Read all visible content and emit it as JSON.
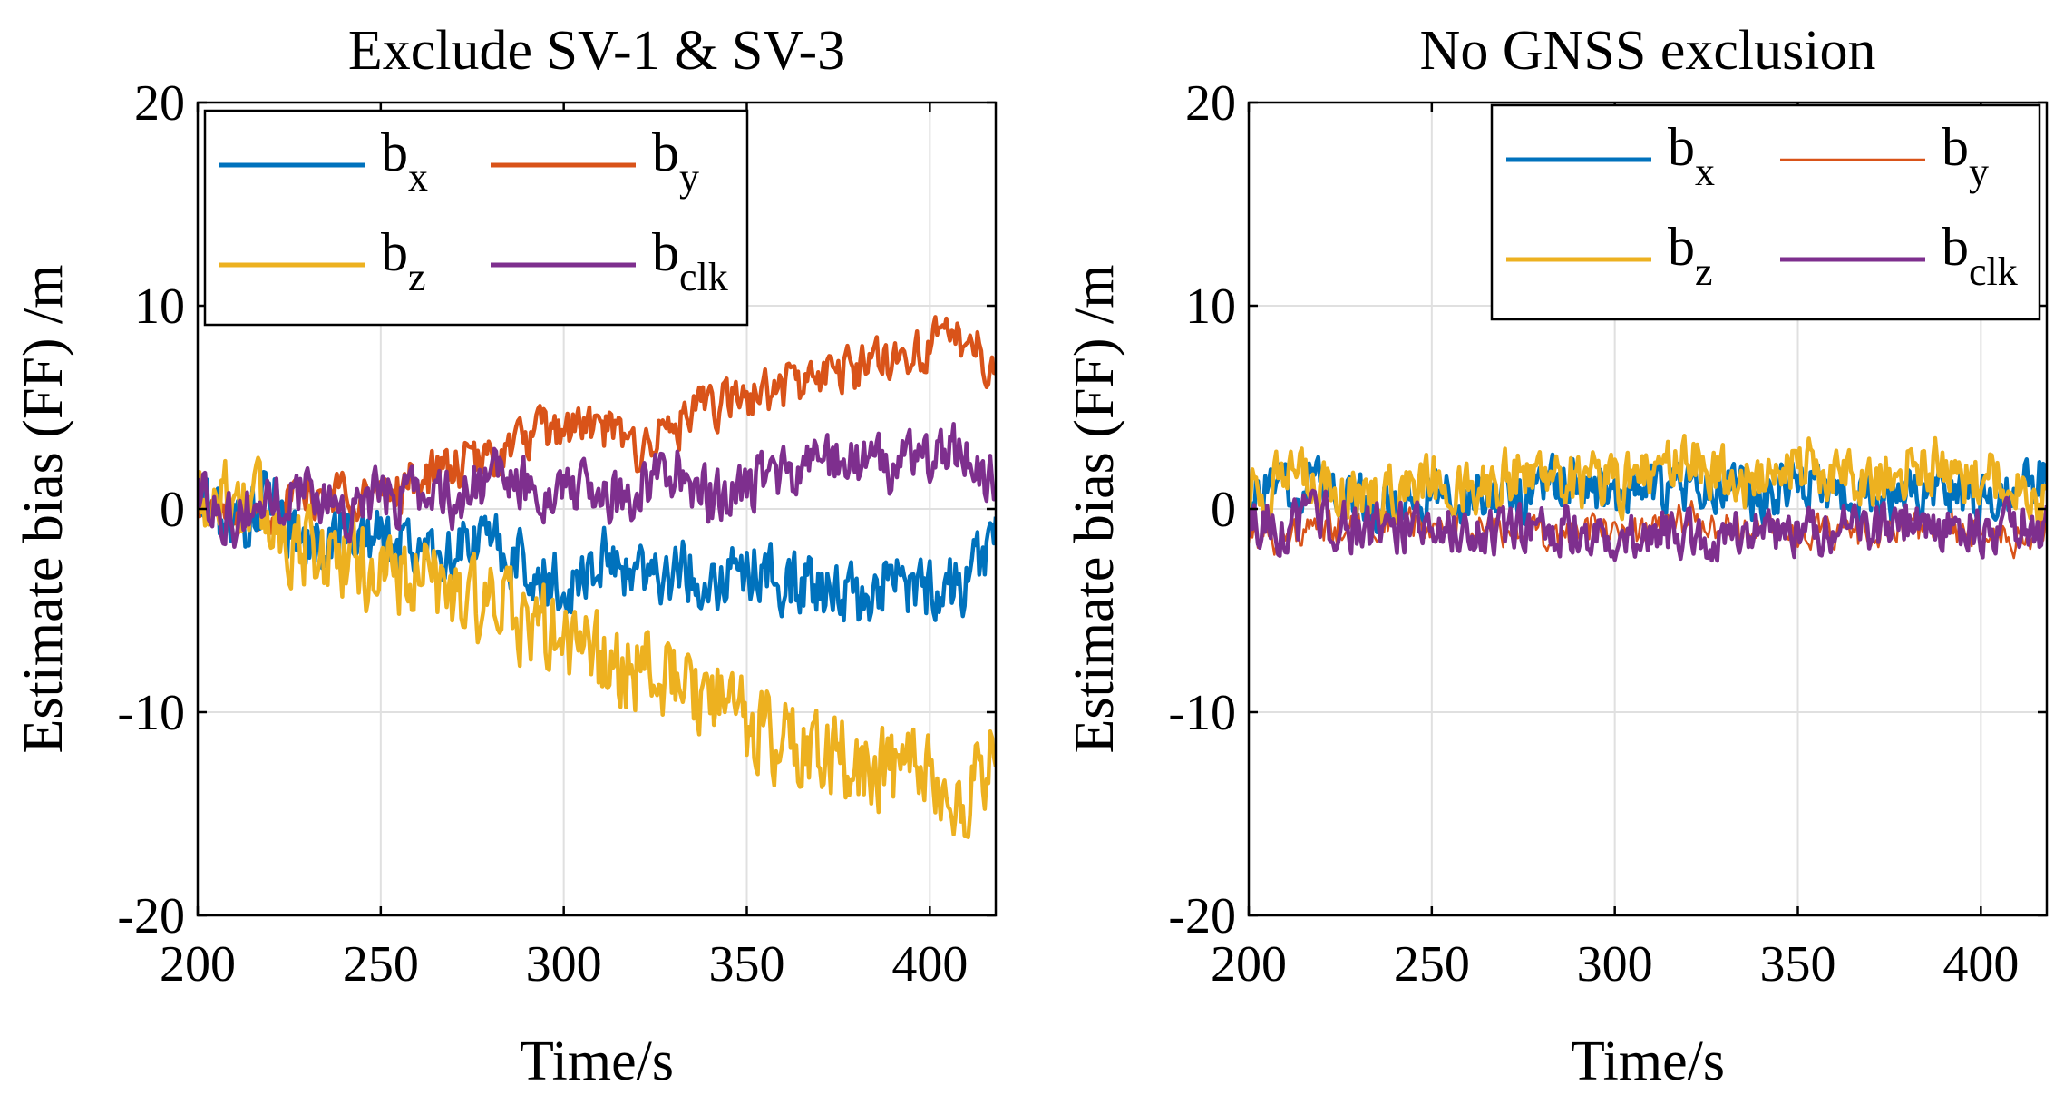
{
  "colors": {
    "bx": "#0072BD",
    "by": "#D95319",
    "bz": "#EDB120",
    "bclk": "#7E2F8E",
    "grid": "#e0e0e0",
    "axis": "#000000"
  },
  "chart_data": [
    {
      "type": "line",
      "title": "Exclude SV-1 & SV-3",
      "xlabel": "Time/s",
      "ylabel": "Estimate bias (FF) /m",
      "xlim": [
        200,
        418
      ],
      "ylim": [
        -20,
        20
      ],
      "xticks": [
        "200",
        "250",
        "300",
        "350",
        "400"
      ],
      "yticks": [
        "20",
        "10",
        "0",
        "-10",
        "-20"
      ],
      "grid": true,
      "legend_position": "top-left",
      "legend": [
        {
          "key": "bx",
          "base": "b",
          "sub": "x"
        },
        {
          "key": "by",
          "base": "b",
          "sub": "y"
        },
        {
          "key": "bz",
          "base": "b",
          "sub": "z"
        },
        {
          "key": "bclk",
          "base": "b",
          "sub": "clk"
        }
      ],
      "x": [
        200,
        210,
        220,
        230,
        240,
        250,
        260,
        270,
        280,
        290,
        300,
        310,
        320,
        330,
        340,
        350,
        360,
        370,
        380,
        390,
        400,
        410,
        418
      ],
      "series": [
        {
          "name": "bx",
          "values": [
            0.5,
            -1,
            0.5,
            -2,
            -1,
            -1.5,
            -2,
            -2,
            -1.5,
            -3,
            -4,
            -2.5,
            -3,
            -3,
            -3.5,
            -3,
            -3.5,
            -4,
            -4.5,
            -3.5,
            -4,
            -3.5,
            -1
          ]
        },
        {
          "name": "by",
          "values": [
            0.5,
            -0.5,
            0,
            0.5,
            1,
            0.5,
            1.5,
            2,
            2.5,
            3.5,
            4,
            4,
            3,
            4,
            5,
            5.5,
            6,
            6.5,
            7,
            7.5,
            8,
            8.5,
            7
          ]
        },
        {
          "name": "bz",
          "values": [
            0.5,
            1,
            -0.5,
            -2,
            -2.5,
            -3,
            -3.5,
            -4,
            -5,
            -5.5,
            -6.5,
            -7.5,
            -8,
            -8.5,
            -9.5,
            -10.5,
            -11.5,
            -12,
            -12.5,
            -13,
            -13.5,
            -15,
            -11
          ]
        },
        {
          "name": "bclk",
          "values": [
            1,
            -0.5,
            0.5,
            1,
            0,
            0.5,
            1,
            0.5,
            1.5,
            1,
            1,
            0.5,
            1,
            2,
            0.5,
            1,
            1.5,
            2.5,
            2.5,
            2,
            2.5,
            3,
            1
          ]
        }
      ]
    },
    {
      "type": "line",
      "title": "No GNSS exclusion",
      "xlabel": "Time/s",
      "ylabel": "Estimate bias (FF) /m",
      "xlim": [
        200,
        418
      ],
      "ylim": [
        -20,
        20
      ],
      "xticks": [
        "200",
        "250",
        "300",
        "350",
        "400"
      ],
      "yticks": [
        "20",
        "10",
        "0",
        "-10",
        "-20"
      ],
      "grid": true,
      "legend_position": "top-right",
      "legend": [
        {
          "key": "bx",
          "base": "b",
          "sub": "x"
        },
        {
          "key": "by",
          "base": "b",
          "sub": "y"
        },
        {
          "key": "bz",
          "base": "b",
          "sub": "z"
        },
        {
          "key": "bclk",
          "base": "b",
          "sub": "clk"
        }
      ],
      "x": [
        200,
        210,
        220,
        230,
        240,
        250,
        260,
        270,
        280,
        290,
        300,
        310,
        320,
        330,
        340,
        350,
        360,
        370,
        380,
        390,
        400,
        410,
        418
      ],
      "series": [
        {
          "name": "bx",
          "values": [
            0.5,
            1,
            1.5,
            0.5,
            0,
            1,
            0.5,
            0.5,
            1,
            1.5,
            0.5,
            1,
            1,
            1,
            0.5,
            1.5,
            1,
            0.5,
            1,
            1,
            0.5,
            1,
            1.5
          ]
        },
        {
          "name": "by",
          "values": [
            -1,
            -1.5,
            -1,
            -1,
            -0.5,
            -1,
            -1,
            -1,
            -1.5,
            -1,
            -1,
            -1,
            -0.5,
            -1,
            -1,
            -1,
            -1.5,
            -1,
            -1,
            -1,
            -1,
            -1.5,
            -1
          ]
        },
        {
          "name": "bz",
          "values": [
            1,
            1.5,
            1,
            0.5,
            1,
            1.5,
            1,
            1.5,
            2,
            1.5,
            1,
            2,
            2.5,
            1.5,
            1.5,
            2,
            1.5,
            1.5,
            2,
            2,
            1.5,
            1,
            0.5
          ]
        },
        {
          "name": "bclk",
          "values": [
            -0.5,
            -1,
            -0.5,
            -1,
            -1,
            -0.5,
            -1.5,
            -1,
            -1,
            -1,
            -1.5,
            -1,
            -1,
            -1.5,
            -1,
            -1,
            -1,
            -1,
            -0.5,
            -1,
            -1,
            -1,
            -1
          ]
        }
      ]
    }
  ]
}
